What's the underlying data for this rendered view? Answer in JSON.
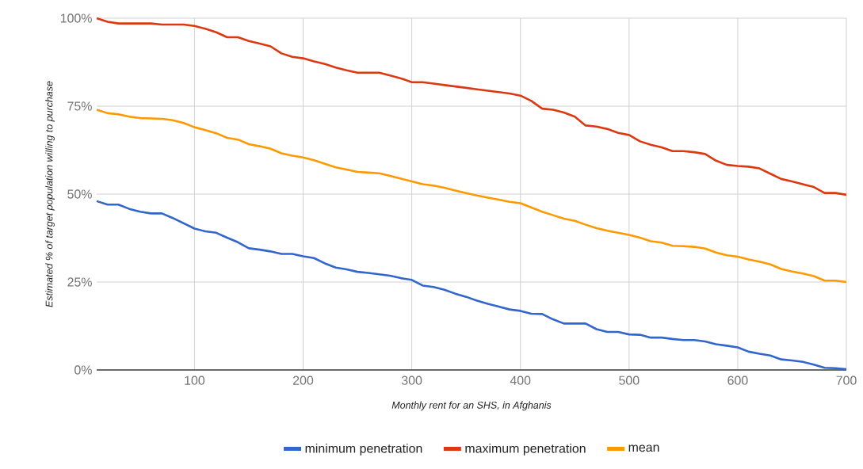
{
  "chart_data": {
    "type": "line",
    "xlabel": "Monthly rent for an SHS, in Afghanis",
    "ylabel": "Estimated % of target population willing to purchase",
    "x": [
      10,
      20,
      30,
      40,
      50,
      60,
      70,
      80,
      90,
      100,
      110,
      120,
      130,
      140,
      150,
      160,
      170,
      180,
      190,
      200,
      210,
      220,
      230,
      240,
      250,
      260,
      270,
      280,
      290,
      300,
      310,
      320,
      330,
      340,
      350,
      360,
      370,
      380,
      390,
      400,
      410,
      420,
      430,
      440,
      450,
      460,
      470,
      480,
      490,
      500,
      510,
      520,
      530,
      540,
      550,
      560,
      570,
      580,
      590,
      600,
      610,
      620,
      630,
      640,
      650,
      660,
      670,
      680,
      690,
      700
    ],
    "series": [
      {
        "name": "minimum penetration",
        "color": "#3366cc",
        "values": [
          48,
          47,
          47,
          45.8,
          45,
          44.5,
          44.5,
          43.2,
          41.7,
          40.2,
          39.4,
          39,
          37.6,
          36.3,
          34.6,
          34.2,
          33.7,
          33,
          33,
          32.3,
          31.8,
          30.3,
          29.1,
          28.6,
          27.9,
          27.6,
          27.2,
          26.8,
          26.1,
          25.6,
          24,
          23.6,
          22.8,
          21.7,
          20.8,
          19.7,
          18.8,
          18,
          17.2,
          16.8,
          16,
          15.9,
          14.4,
          13.2,
          13.2,
          13.2,
          11.6,
          10.8,
          10.8,
          10.1,
          10,
          9.2,
          9.2,
          8.8,
          8.5,
          8.5,
          8.1,
          7.3,
          6.9,
          6.4,
          5.2,
          4.6,
          4.1,
          3,
          2.7,
          2.3,
          1.5,
          0.6,
          0.5,
          0.2
        ]
      },
      {
        "name": "maximum penetration",
        "color": "#dc3912",
        "values": [
          100,
          99,
          98.5,
          98.5,
          98.5,
          98.5,
          98.2,
          98.2,
          98.2,
          97.8,
          97,
          96,
          94.6,
          94.6,
          93.5,
          92.8,
          92,
          90,
          89,
          88.6,
          87.7,
          87,
          86,
          85.2,
          84.5,
          84.5,
          84.5,
          83.7,
          82.9,
          81.8,
          81.8,
          81.4,
          81,
          80.6,
          80.2,
          79.8,
          79.4,
          79,
          78.6,
          78,
          76.5,
          74.3,
          74,
          73.2,
          72,
          69.5,
          69.2,
          68.5,
          67.4,
          66.8,
          65,
          64,
          63.3,
          62.2,
          62.2,
          61.9,
          61.4,
          59.5,
          58.3,
          58,
          57.8,
          57.3,
          55.8,
          54.3,
          53.6,
          52.8,
          52,
          50.3,
          50.3,
          49.8
        ]
      },
      {
        "name": "mean",
        "color": "#ff9900",
        "values": [
          74,
          73,
          72.7,
          72,
          71.6,
          71.5,
          71.4,
          71,
          70.2,
          69,
          68.2,
          67.3,
          66,
          65.5,
          64.2,
          63.6,
          62.9,
          61.6,
          60.9,
          60.4,
          59.6,
          58.6,
          57.6,
          57,
          56.3,
          56.1,
          55.9,
          55.2,
          54.4,
          53.6,
          52.8,
          52.4,
          51.8,
          51,
          50.3,
          49.6,
          49,
          48.4,
          47.8,
          47.4,
          46.2,
          45,
          44,
          43,
          42.4,
          41.3,
          40.3,
          39.6,
          39,
          38.4,
          37.6,
          36.6,
          36.2,
          35.3,
          35.2,
          35,
          34.5,
          33.4,
          32.6,
          32.2,
          31.4,
          30.8,
          30,
          28.7,
          28,
          27.4,
          26.7,
          25.4,
          25.4,
          25
        ]
      }
    ],
    "xlim": [
      10,
      700
    ],
    "ylim": [
      0,
      100
    ],
    "xticks": [
      100,
      200,
      300,
      400,
      500,
      600,
      700
    ],
    "yticks": [
      {
        "value": 0,
        "label": "0%"
      },
      {
        "value": 25,
        "label": "25%"
      },
      {
        "value": 50,
        "label": "50%"
      },
      {
        "value": 75,
        "label": "75%"
      },
      {
        "value": 100,
        "label": "100%"
      }
    ],
    "grid": true,
    "legend": "bottom",
    "marker": "none",
    "line_style": "solid"
  }
}
